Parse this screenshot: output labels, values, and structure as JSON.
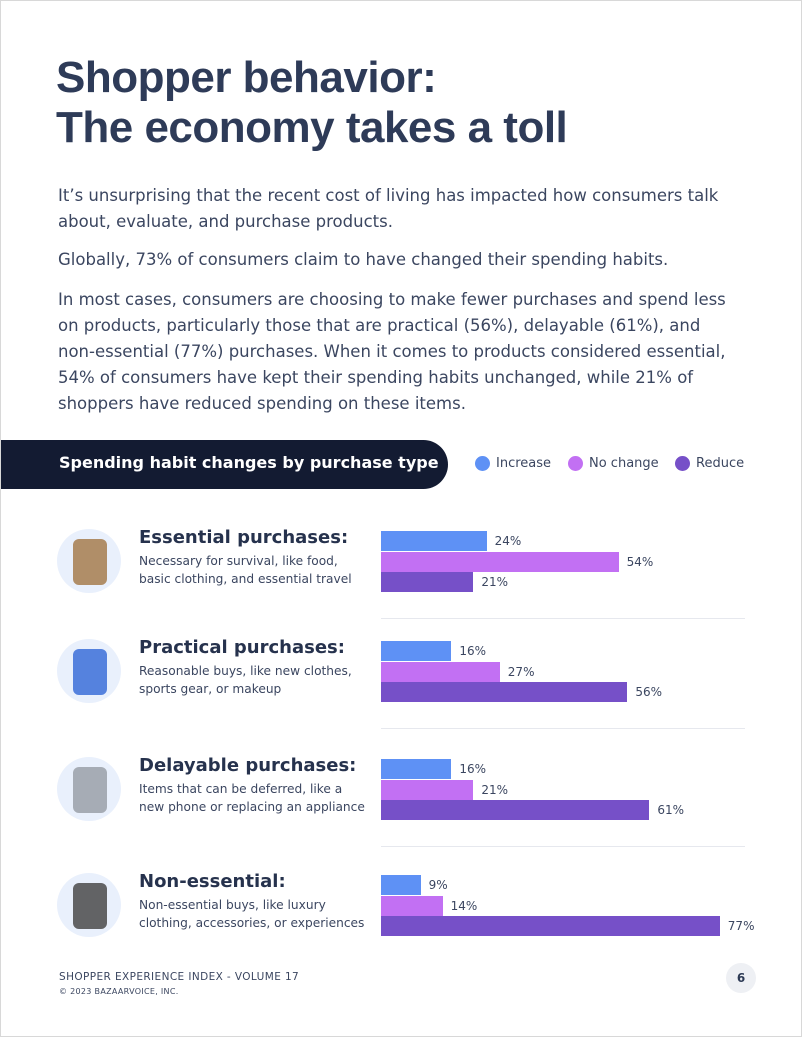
{
  "header": {
    "title_lines": [
      "Shopper behavior:",
      "The economy takes a toll"
    ]
  },
  "paragraphs": [
    "It’s unsurprising that the recent cost of living has impacted how consumers talk about, evaluate, and purchase products.",
    "Globally, 73% of consumers claim to have changed their spending habits.",
    "In most cases, consumers are choosing to make fewer purchases and spend less on products, particularly those that are practical (56%), delayable (61%), and non-essential (77%) purchases. When it comes to products considered essential, 54% of consumers have kept their spending habits unchanged, while 21% of shoppers have reduced spending on these items."
  ],
  "chart_data": {
    "type": "bar",
    "orientation": "horizontal",
    "title": "Spending habit changes by purchase type",
    "categories": [
      "Essential purchases:",
      "Practical purchases:",
      "Delayable purchases:",
      "Non-essential:"
    ],
    "descriptions": [
      "Necessary for survival, like food, basic clothing, and essential travel",
      "Reasonable buys, like new clothes, sports gear, or makeup",
      "Items that can be deferred, like a new phone or replacing an appliance",
      "Non-essential buys, like luxury clothing, accessories, or experiences"
    ],
    "series": [
      {
        "name": "Increase",
        "color": "#5e91f5",
        "values": [
          24,
          16,
          16,
          9
        ],
        "value_labels": [
          "24%",
          "16%",
          "16%",
          "9%"
        ]
      },
      {
        "name": "No change",
        "color": "#c270f3",
        "values": [
          54,
          27,
          21,
          14
        ],
        "value_labels": [
          "54%",
          "27%",
          "21%",
          "14%"
        ]
      },
      {
        "name": "Reduce",
        "color": "#7650c8",
        "values": [
          21,
          56,
          61,
          77
        ],
        "value_labels": [
          "21%",
          "56%",
          "61%",
          "77%"
        ]
      }
    ]
  },
  "footer": {
    "publication": "SHOPPER EXPERIENCE INDEX - VOLUME 17",
    "copyright": "© 2023 BAZAARVOICE, INC.",
    "page_number": "6"
  }
}
